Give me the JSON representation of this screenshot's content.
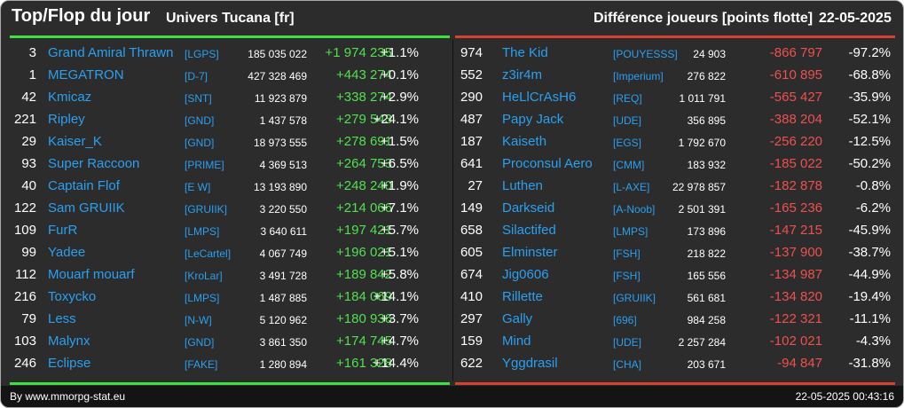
{
  "header": {
    "title": "Top/Flop du jour",
    "universe": "Univers Tucana [fr]",
    "difference_label": "Différence joueurs [points flotte]",
    "date": "22-05-2025"
  },
  "colors": {
    "gain": "#50e050",
    "loss": "#ee5050",
    "name": "#2aa0f0",
    "top_bar": "#40e040",
    "flop_bar": "#d84030"
  },
  "top": [
    {
      "rank": "3",
      "name": "Grand Amiral Thrawn",
      "tag": "[LGPS]",
      "points": "185 035 022",
      "change": "+1 974 235",
      "percent": "+1.1%"
    },
    {
      "rank": "1",
      "name": "MEGATRON",
      "tag": "[D-7]",
      "points": "427 328 469",
      "change": "+443 274",
      "percent": "+0.1%"
    },
    {
      "rank": "42",
      "name": "Kmicaz",
      "tag": "[SNT]",
      "points": "11 923 879",
      "change": "+338 274",
      "percent": "+2.9%"
    },
    {
      "rank": "221",
      "name": "Ripley",
      "tag": "[GND]",
      "points": "1 437 578",
      "change": "+279 543",
      "percent": "+24.1%"
    },
    {
      "rank": "29",
      "name": "Kaiser_K",
      "tag": "[GND]",
      "points": "18 973 555",
      "change": "+278 691",
      "percent": "+1.5%"
    },
    {
      "rank": "93",
      "name": "Super Raccoon",
      "tag": "[PRIME]",
      "points": "4 369 513",
      "change": "+264 753",
      "percent": "+6.5%"
    },
    {
      "rank": "40",
      "name": "Captain Flof",
      "tag": "[E W]",
      "points": "13 193 890",
      "change": "+248 240",
      "percent": "+1.9%"
    },
    {
      "rank": "122",
      "name": "Sam GRUIIK",
      "tag": "[GRUIIK]",
      "points": "3 220 550",
      "change": "+214 066",
      "percent": "+7.1%"
    },
    {
      "rank": "109",
      "name": "FurR",
      "tag": "[LMPS]",
      "points": "3 640 611",
      "change": "+197 421",
      "percent": "+5.7%"
    },
    {
      "rank": "99",
      "name": "Yadee",
      "tag": "[LeCartel]",
      "points": "4 067 749",
      "change": "+196 021",
      "percent": "+5.1%"
    },
    {
      "rank": "112",
      "name": "Mouarf mouarf",
      "tag": "[KroLar]",
      "points": "3 491 728",
      "change": "+189 842",
      "percent": "+5.8%"
    },
    {
      "rank": "216",
      "name": "Toxycko",
      "tag": "[LMPS]",
      "points": "1 487 885",
      "change": "+184 069",
      "percent": "+14.1%"
    },
    {
      "rank": "79",
      "name": "Less",
      "tag": "[N-W]",
      "points": "5 120 962",
      "change": "+180 936",
      "percent": "+3.7%"
    },
    {
      "rank": "103",
      "name": "Malynx",
      "tag": "[GND]",
      "points": "3 861 350",
      "change": "+174 745",
      "percent": "+4.7%"
    },
    {
      "rank": "246",
      "name": "Eclipse",
      "tag": "[FAKE]",
      "points": "1 280 894",
      "change": "+161 328",
      "percent": "+14.4%"
    }
  ],
  "flop": [
    {
      "rank": "974",
      "name": "The Kid",
      "tag": "[POUYESSS]",
      "points": "24 903",
      "change": "-866 797",
      "percent": "-97.2%"
    },
    {
      "rank": "552",
      "name": "z3ir4m",
      "tag": "[Imperium]",
      "points": "276 822",
      "change": "-610 895",
      "percent": "-68.8%"
    },
    {
      "rank": "290",
      "name": "HeLlCrAsH6",
      "tag": "[REQ]",
      "points": "1 011 791",
      "change": "-565 427",
      "percent": "-35.9%"
    },
    {
      "rank": "487",
      "name": "Papy Jack",
      "tag": "[UDE]",
      "points": "356 895",
      "change": "-388 204",
      "percent": "-52.1%"
    },
    {
      "rank": "187",
      "name": "Kaiseth",
      "tag": "[EGS]",
      "points": "1 792 670",
      "change": "-256 220",
      "percent": "-12.5%"
    },
    {
      "rank": "641",
      "name": "Proconsul Aero",
      "tag": "[CMM]",
      "points": "183 932",
      "change": "-185 022",
      "percent": "-50.2%"
    },
    {
      "rank": "27",
      "name": "Luthen",
      "tag": "[L-AXE]",
      "points": "22 978 857",
      "change": "-182 878",
      "percent": "-0.8%"
    },
    {
      "rank": "149",
      "name": "Darkseid",
      "tag": "[A-Noob]",
      "points": "2 501 391",
      "change": "-165 236",
      "percent": "-6.2%"
    },
    {
      "rank": "658",
      "name": "Silactifed",
      "tag": "[LMPS]",
      "points": "173 896",
      "change": "-147 215",
      "percent": "-45.9%"
    },
    {
      "rank": "605",
      "name": "Elminster",
      "tag": "[FSH]",
      "points": "218 822",
      "change": "-137 900",
      "percent": "-38.7%"
    },
    {
      "rank": "674",
      "name": "Jig0606",
      "tag": "[FSH]",
      "points": "165 556",
      "change": "-134 987",
      "percent": "-44.9%"
    },
    {
      "rank": "410",
      "name": "Rillette",
      "tag": "[GRUIIK]",
      "points": "561 681",
      "change": "-134 820",
      "percent": "-19.4%"
    },
    {
      "rank": "297",
      "name": "Gally",
      "tag": "[696]",
      "points": "984 258",
      "change": "-122 321",
      "percent": "-11.1%"
    },
    {
      "rank": "159",
      "name": "Mind",
      "tag": "[UDE]",
      "points": "2 257 284",
      "change": "-102 021",
      "percent": "-4.3%"
    },
    {
      "rank": "622",
      "name": "Yggdrasil",
      "tag": "[CHA]",
      "points": "203 671",
      "change": "-94 847",
      "percent": "-31.8%"
    }
  ],
  "footer": {
    "byline": "By www.mmorpg-stat.eu",
    "timestamp": "22-05-2025 00:43:16"
  }
}
